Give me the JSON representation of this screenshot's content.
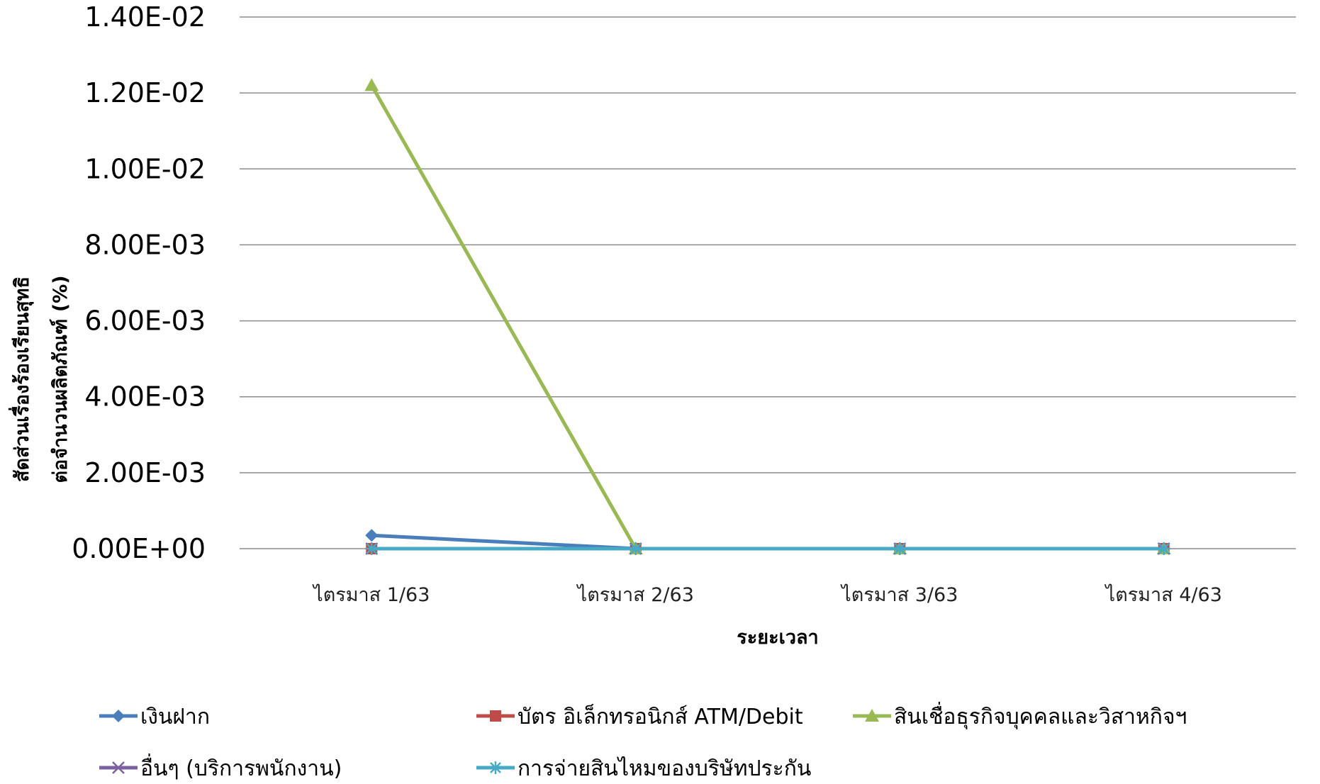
{
  "chart_data": {
    "type": "line",
    "categories": [
      "ไตรมาส 1/63",
      "ไตรมาส 2/63",
      "ไตรมาส 3/63",
      "ไตรมาส 4/63"
    ],
    "xlabel": "ระยะเวลา",
    "ylabel_lines": [
      "สัดส่วนเรื่องร้องเรียนสุทธิ",
      "ต่อจำนวนผลิตภัณฑ์ (%)"
    ],
    "ylim": [
      0,
      0.014
    ],
    "yticks": [
      0,
      0.002,
      0.004,
      0.006,
      0.008,
      0.01,
      0.012,
      0.014
    ],
    "ytick_labels": [
      "0.00E+00",
      "2.00E-03",
      "4.00E-03",
      "6.00E-03",
      "8.00E-03",
      "1.00E-02",
      "1.20E-02",
      "1.40E-02"
    ],
    "grid": true,
    "legend_position": "bottom",
    "series": [
      {
        "name": "เงินฝาก",
        "values": [
          0.00035,
          0,
          0,
          0
        ],
        "color": "#4a7ebb",
        "marker": "diamond"
      },
      {
        "name": "บัตร อิเล็กทรอนิกส์ ATM/Debit",
        "values": [
          0,
          0,
          0,
          0
        ],
        "color": "#be4b48",
        "marker": "square"
      },
      {
        "name": "สินเชื่อธุรกิจบุคคลและวิสาหกิจฯ",
        "values": [
          0.0122,
          0,
          0,
          0
        ],
        "color": "#98b954",
        "marker": "triangle"
      },
      {
        "name": "อื่นๆ (บริการพนักงาน)",
        "values": [
          0,
          0,
          0,
          0
        ],
        "color": "#7d60a0",
        "marker": "x"
      },
      {
        "name": "การจ่ายสินไหมของบริษัทประกัน",
        "values": [
          0,
          0,
          0,
          0
        ],
        "color": "#46aac5",
        "marker": "star"
      }
    ]
  }
}
